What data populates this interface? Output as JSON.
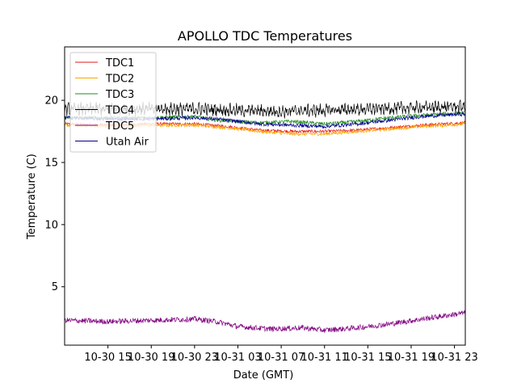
{
  "chart_data": {
    "type": "line",
    "title": "APOLLO TDC Temperatures",
    "xlabel": "Date (GMT)",
    "ylabel": "Temperature (C)",
    "x_unit": "hours since 2017-10-30 11:00 GMT (approx)",
    "xlim": [
      0,
      37
    ],
    "ylim": [
      0.3,
      24.3
    ],
    "grid": false,
    "legend_position": "top-left",
    "y_ticks": [
      {
        "value": 5,
        "label": "5"
      },
      {
        "value": 10,
        "label": "10"
      },
      {
        "value": 15,
        "label": "15"
      },
      {
        "value": 20,
        "label": "20"
      }
    ],
    "x_ticks": [
      {
        "value": 4,
        "label": "10-30 15"
      },
      {
        "value": 8,
        "label": "10-30 19"
      },
      {
        "value": 12,
        "label": "10-30 23"
      },
      {
        "value": 16,
        "label": "10-31 03"
      },
      {
        "value": 20,
        "label": "10-31 07"
      },
      {
        "value": 24,
        "label": "10-31 11"
      },
      {
        "value": 28,
        "label": "10-31 15"
      },
      {
        "value": 32,
        "label": "10-31 19"
      },
      {
        "value": 36,
        "label": "10-31 23"
      }
    ],
    "series": [
      {
        "name": "TDC1",
        "color": "#e41a1c",
        "noise": 0.12,
        "points": [
          [
            0,
            18.1
          ],
          [
            4,
            18.0
          ],
          [
            8,
            18.1
          ],
          [
            12,
            18.1
          ],
          [
            15,
            17.9
          ],
          [
            18,
            17.6
          ],
          [
            21,
            17.5
          ],
          [
            24,
            17.5
          ],
          [
            27,
            17.6
          ],
          [
            30,
            17.8
          ],
          [
            33,
            18.0
          ],
          [
            37,
            18.2
          ]
        ]
      },
      {
        "name": "TDC2",
        "color": "#ffa500",
        "noise": 0.14,
        "points": [
          [
            0,
            18.0
          ],
          [
            4,
            17.9
          ],
          [
            8,
            18.0
          ],
          [
            12,
            18.0
          ],
          [
            15,
            17.8
          ],
          [
            18,
            17.5
          ],
          [
            21,
            17.3
          ],
          [
            24,
            17.3
          ],
          [
            27,
            17.5
          ],
          [
            30,
            17.7
          ],
          [
            33,
            17.9
          ],
          [
            37,
            18.1
          ]
        ]
      },
      {
        "name": "TDC3",
        "color": "#228b22",
        "noise": 0.15,
        "points": [
          [
            0,
            18.6
          ],
          [
            4,
            18.6
          ],
          [
            8,
            18.6
          ],
          [
            12,
            18.7
          ],
          [
            14,
            18.4
          ],
          [
            18,
            18.2
          ],
          [
            21,
            18.3
          ],
          [
            24,
            18.1
          ],
          [
            27,
            18.3
          ],
          [
            30,
            18.6
          ],
          [
            33,
            18.8
          ],
          [
            37,
            19.0
          ]
        ]
      },
      {
        "name": "TDC4",
        "color": "#000000",
        "noise": 0.35,
        "points": [
          [
            0,
            19.3
          ],
          [
            4,
            19.3
          ],
          [
            8,
            19.3
          ],
          [
            12,
            19.3
          ],
          [
            16,
            19.2
          ],
          [
            20,
            19.1
          ],
          [
            24,
            19.2
          ],
          [
            28,
            19.3
          ],
          [
            32,
            19.4
          ],
          [
            37,
            19.5
          ]
        ]
      },
      {
        "name": "TDC5",
        "color": "#800080",
        "noise": 0.22,
        "points": [
          [
            0,
            2.3
          ],
          [
            4,
            2.2
          ],
          [
            8,
            2.3
          ],
          [
            12,
            2.4
          ],
          [
            14,
            2.2
          ],
          [
            16,
            1.8
          ],
          [
            19,
            1.6
          ],
          [
            22,
            1.7
          ],
          [
            24,
            1.5
          ],
          [
            27,
            1.7
          ],
          [
            30,
            2.0
          ],
          [
            33,
            2.4
          ],
          [
            37,
            2.9
          ]
        ]
      },
      {
        "name": "Utah Air",
        "color": "#00008b",
        "noise": 0.15,
        "points": [
          [
            0,
            18.6
          ],
          [
            4,
            18.5
          ],
          [
            8,
            18.5
          ],
          [
            12,
            18.6
          ],
          [
            14,
            18.5
          ],
          [
            18,
            18.1
          ],
          [
            21,
            18.0
          ],
          [
            24,
            17.9
          ],
          [
            27,
            18.1
          ],
          [
            30,
            18.4
          ],
          [
            33,
            18.7
          ],
          [
            37,
            18.9
          ]
        ]
      }
    ]
  }
}
